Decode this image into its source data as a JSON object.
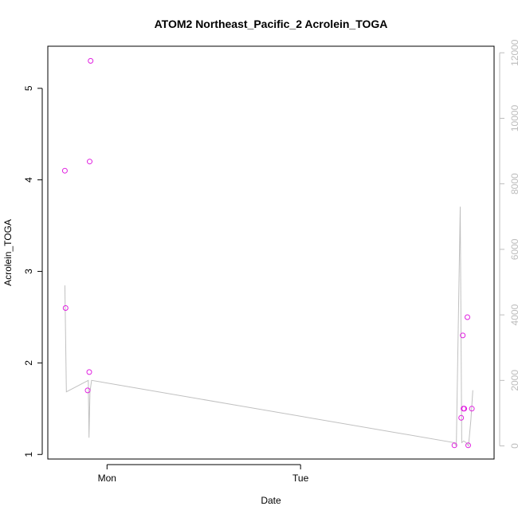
{
  "chart_data": {
    "type": "scatter",
    "title": "ATOM2 Northeast_Pacific_2 Acrolein_TOGA",
    "xlabel": "Date",
    "ylabel": "Acrolein_TOGA",
    "x_axis": {
      "ticks": [
        {
          "label": "Mon",
          "value": 0.0
        },
        {
          "label": "Tue",
          "value": 1.0
        }
      ],
      "range_days": [
        -0.306,
        2.0
      ]
    },
    "y_left": {
      "range": [
        0.95,
        5.46
      ],
      "ticks": [
        1,
        2,
        3,
        4,
        5
      ]
    },
    "y_right": {
      "range": [
        -400,
        12200
      ],
      "ticks": [
        0,
        2000,
        4000,
        6000,
        8000,
        10000,
        12000
      ],
      "color": "#bdbdbd"
    },
    "series": [
      {
        "type": "points",
        "color": "#e020e0",
        "x": [
          -0.218,
          -0.214,
          -0.1,
          -0.092,
          -0.09,
          -0.085,
          1.795,
          1.83,
          1.838,
          1.842,
          1.846,
          1.862,
          1.866,
          1.885
        ],
        "y": [
          4.1,
          2.6,
          1.7,
          1.9,
          4.2,
          5.3,
          1.1,
          1.4,
          2.3,
          1.5,
          1.5,
          2.5,
          1.1,
          1.5
        ]
      },
      {
        "type": "line",
        "axis": "right",
        "color": "#c0c0c0",
        "x": [
          -0.218,
          -0.21,
          -0.097,
          -0.093,
          -0.088,
          -0.08,
          1.793,
          1.805,
          1.825,
          1.833,
          1.843,
          1.855,
          1.862,
          1.868,
          1.88,
          1.89
        ],
        "y": [
          4900,
          1650,
          2000,
          250,
          1650,
          2000,
          100,
          0,
          7300,
          100,
          150,
          100,
          50,
          0,
          800,
          1700
        ]
      }
    ]
  }
}
